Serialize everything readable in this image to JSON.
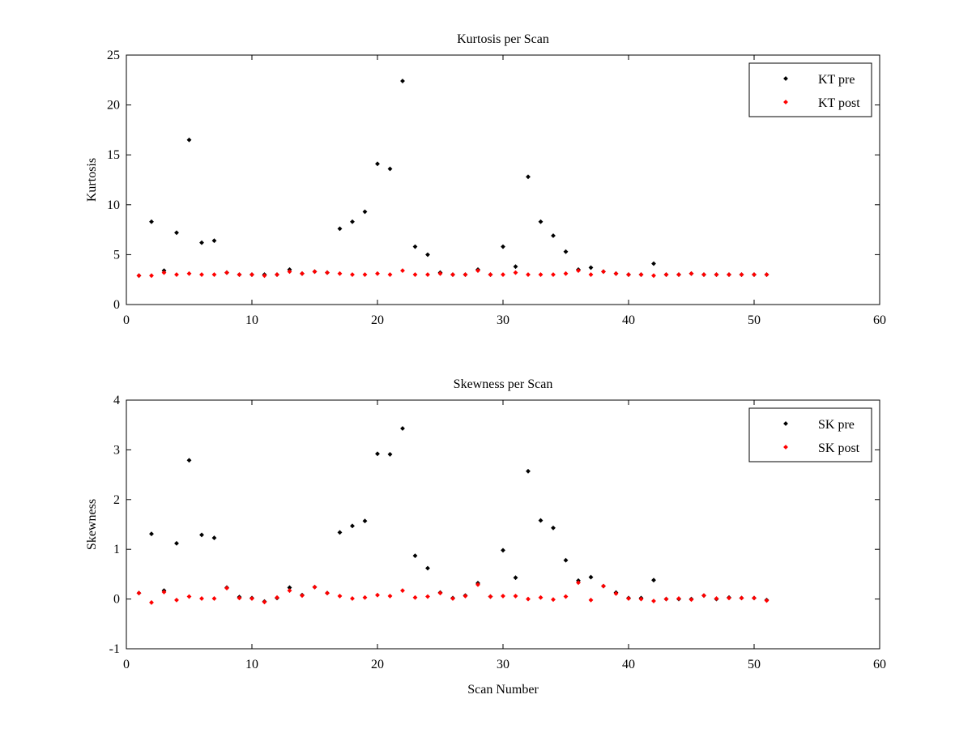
{
  "chart_data": [
    {
      "type": "scatter",
      "title": "Kurtosis per Scan",
      "xlabel": "",
      "ylabel": "Kurtosis",
      "xlim": [
        0,
        60
      ],
      "ylim": [
        0,
        25
      ],
      "xticks": [
        0,
        10,
        20,
        30,
        40,
        50,
        60
      ],
      "yticks": [
        0,
        5,
        10,
        15,
        20,
        25
      ],
      "legend_position": "top-right",
      "grid": false,
      "series": [
        {
          "name": "KT pre",
          "color": "#000000",
          "points": [
            [
              1,
              2.9
            ],
            [
              2,
              8.3
            ],
            [
              3,
              3.4
            ],
            [
              4,
              7.2
            ],
            [
              5,
              16.5
            ],
            [
              6,
              6.2
            ],
            [
              7,
              6.4
            ],
            [
              8,
              3.2
            ],
            [
              9,
              3.0
            ],
            [
              10,
              3.0
            ],
            [
              11,
              3.0
            ],
            [
              12,
              3.0
            ],
            [
              13,
              3.5
            ],
            [
              14,
              3.1
            ],
            [
              15,
              3.3
            ],
            [
              16,
              3.2
            ],
            [
              17,
              7.6
            ],
            [
              18,
              8.3
            ],
            [
              19,
              9.3
            ],
            [
              20,
              14.1
            ],
            [
              21,
              13.6
            ],
            [
              22,
              22.4
            ],
            [
              23,
              5.8
            ],
            [
              24,
              5.0
            ],
            [
              25,
              3.2
            ],
            [
              26,
              3.0
            ],
            [
              27,
              3.0
            ],
            [
              28,
              3.5
            ],
            [
              29,
              3.0
            ],
            [
              30,
              5.8
            ],
            [
              31,
              3.8
            ],
            [
              32,
              12.8
            ],
            [
              33,
              8.3
            ],
            [
              34,
              6.9
            ],
            [
              35,
              5.3
            ],
            [
              36,
              3.5
            ],
            [
              37,
              3.7
            ],
            [
              38,
              3.3
            ],
            [
              39,
              3.1
            ],
            [
              40,
              3.0
            ],
            [
              41,
              3.0
            ],
            [
              42,
              4.1
            ],
            [
              43,
              3.0
            ],
            [
              44,
              3.0
            ],
            [
              45,
              3.1
            ],
            [
              46,
              3.0
            ],
            [
              47,
              3.0
            ],
            [
              48,
              3.0
            ],
            [
              49,
              3.0
            ],
            [
              50,
              3.0
            ],
            [
              51,
              3.0
            ]
          ]
        },
        {
          "name": "KT post",
          "color": "#ff0000",
          "points": [
            [
              1,
              2.9
            ],
            [
              2,
              2.9
            ],
            [
              3,
              3.2
            ],
            [
              4,
              3.0
            ],
            [
              5,
              3.1
            ],
            [
              6,
              3.0
            ],
            [
              7,
              3.0
            ],
            [
              8,
              3.2
            ],
            [
              9,
              3.0
            ],
            [
              10,
              3.0
            ],
            [
              11,
              2.9
            ],
            [
              12,
              3.0
            ],
            [
              13,
              3.3
            ],
            [
              14,
              3.1
            ],
            [
              15,
              3.3
            ],
            [
              16,
              3.2
            ],
            [
              17,
              3.1
            ],
            [
              18,
              3.0
            ],
            [
              19,
              3.0
            ],
            [
              20,
              3.1
            ],
            [
              21,
              3.0
            ],
            [
              22,
              3.4
            ],
            [
              23,
              3.0
            ],
            [
              24,
              3.0
            ],
            [
              25,
              3.1
            ],
            [
              26,
              3.0
            ],
            [
              27,
              3.0
            ],
            [
              28,
              3.4
            ],
            [
              29,
              3.0
            ],
            [
              30,
              3.0
            ],
            [
              31,
              3.2
            ],
            [
              32,
              3.0
            ],
            [
              33,
              3.0
            ],
            [
              34,
              3.0
            ],
            [
              35,
              3.1
            ],
            [
              36,
              3.4
            ],
            [
              37,
              3.0
            ],
            [
              38,
              3.3
            ],
            [
              39,
              3.1
            ],
            [
              40,
              3.0
            ],
            [
              41,
              3.0
            ],
            [
              42,
              2.9
            ],
            [
              43,
              3.0
            ],
            [
              44,
              3.0
            ],
            [
              45,
              3.1
            ],
            [
              46,
              3.0
            ],
            [
              47,
              3.0
            ],
            [
              48,
              3.0
            ],
            [
              49,
              3.0
            ],
            [
              50,
              3.0
            ],
            [
              51,
              3.0
            ]
          ]
        }
      ]
    },
    {
      "type": "scatter",
      "title": "Skewness per Scan",
      "xlabel": "Scan Number",
      "ylabel": "Skewness",
      "xlim": [
        0,
        60
      ],
      "ylim": [
        -1,
        4
      ],
      "xticks": [
        0,
        10,
        20,
        30,
        40,
        50,
        60
      ],
      "yticks": [
        -1,
        0,
        1,
        2,
        3,
        4
      ],
      "legend_position": "top-right",
      "grid": false,
      "series": [
        {
          "name": "SK pre",
          "color": "#000000",
          "points": [
            [
              1,
              0.12
            ],
            [
              2,
              1.31
            ],
            [
              3,
              0.17
            ],
            [
              4,
              1.12
            ],
            [
              5,
              2.79
            ],
            [
              6,
              1.29
            ],
            [
              7,
              1.23
            ],
            [
              8,
              0.23
            ],
            [
              9,
              0.04
            ],
            [
              10,
              0.02
            ],
            [
              11,
              -0.05
            ],
            [
              12,
              0.02
            ],
            [
              13,
              0.23
            ],
            [
              14,
              0.08
            ],
            [
              15,
              0.24
            ],
            [
              16,
              0.12
            ],
            [
              17,
              1.34
            ],
            [
              18,
              1.47
            ],
            [
              19,
              1.57
            ],
            [
              20,
              2.92
            ],
            [
              21,
              2.91
            ],
            [
              22,
              3.43
            ],
            [
              23,
              0.87
            ],
            [
              24,
              0.62
            ],
            [
              25,
              0.13
            ],
            [
              26,
              0.02
            ],
            [
              27,
              0.07
            ],
            [
              28,
              0.32
            ],
            [
              29,
              0.05
            ],
            [
              30,
              0.98
            ],
            [
              31,
              0.43
            ],
            [
              32,
              2.57
            ],
            [
              33,
              1.58
            ],
            [
              34,
              1.43
            ],
            [
              35,
              0.78
            ],
            [
              36,
              0.37
            ],
            [
              37,
              0.44
            ],
            [
              38,
              0.26
            ],
            [
              39,
              0.13
            ],
            [
              40,
              0.02
            ],
            [
              41,
              0.02
            ],
            [
              42,
              0.38
            ],
            [
              43,
              0.0
            ],
            [
              44,
              0.0
            ],
            [
              45,
              0.0
            ],
            [
              46,
              0.07
            ],
            [
              47,
              0.0
            ],
            [
              48,
              0.03
            ],
            [
              49,
              0.02
            ],
            [
              50,
              0.02
            ],
            [
              51,
              -0.02
            ]
          ]
        },
        {
          "name": "SK post",
          "color": "#ff0000",
          "points": [
            [
              1,
              0.12
            ],
            [
              2,
              -0.07
            ],
            [
              3,
              0.14
            ],
            [
              4,
              -0.02
            ],
            [
              5,
              0.05
            ],
            [
              6,
              0.01
            ],
            [
              7,
              0.01
            ],
            [
              8,
              0.22
            ],
            [
              9,
              0.02
            ],
            [
              10,
              0.01
            ],
            [
              11,
              -0.06
            ],
            [
              12,
              0.03
            ],
            [
              13,
              0.17
            ],
            [
              14,
              0.07
            ],
            [
              15,
              0.24
            ],
            [
              16,
              0.12
            ],
            [
              17,
              0.06
            ],
            [
              18,
              0.01
            ],
            [
              19,
              0.03
            ],
            [
              20,
              0.08
            ],
            [
              21,
              0.06
            ],
            [
              22,
              0.17
            ],
            [
              23,
              0.03
            ],
            [
              24,
              0.05
            ],
            [
              25,
              0.12
            ],
            [
              26,
              0.01
            ],
            [
              27,
              0.06
            ],
            [
              28,
              0.29
            ],
            [
              29,
              0.05
            ],
            [
              30,
              0.06
            ],
            [
              31,
              0.06
            ],
            [
              32,
              0.0
            ],
            [
              33,
              0.03
            ],
            [
              34,
              -0.01
            ],
            [
              35,
              0.05
            ],
            [
              36,
              0.33
            ],
            [
              37,
              -0.02
            ],
            [
              38,
              0.26
            ],
            [
              39,
              0.11
            ],
            [
              40,
              0.01
            ],
            [
              41,
              0.0
            ],
            [
              42,
              -0.04
            ],
            [
              43,
              0.0
            ],
            [
              44,
              0.01
            ],
            [
              45,
              -0.01
            ],
            [
              46,
              0.07
            ],
            [
              47,
              0.01
            ],
            [
              48,
              0.02
            ],
            [
              49,
              0.02
            ],
            [
              50,
              0.02
            ],
            [
              51,
              -0.03
            ]
          ]
        }
      ]
    }
  ]
}
